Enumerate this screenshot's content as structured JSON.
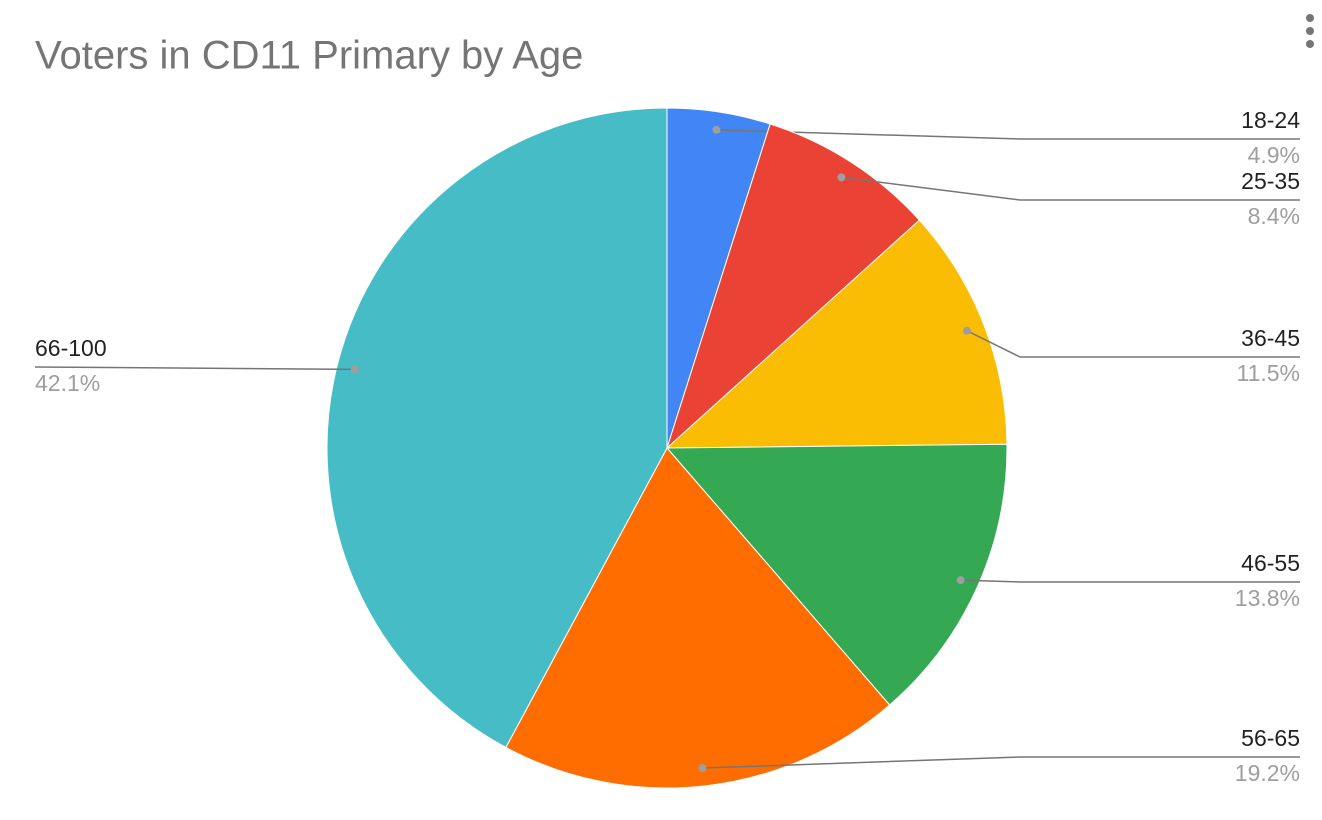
{
  "chart_data": {
    "type": "pie",
    "title": "Voters in CD11 Primary by Age",
    "categories": [
      "18-24",
      "25-35",
      "36-45",
      "46-55",
      "56-65",
      "66-100"
    ],
    "values": [
      4.9,
      8.4,
      11.5,
      13.8,
      19.2,
      42.1
    ],
    "value_labels": [
      "4.9%",
      "8.4%",
      "11.5%",
      "13.8%",
      "19.2%",
      "42.1%"
    ],
    "colors": [
      "#4285f4",
      "#ea4335",
      "#fbbc04",
      "#34a853",
      "#ff6d01",
      "#46bdc6"
    ]
  }
}
